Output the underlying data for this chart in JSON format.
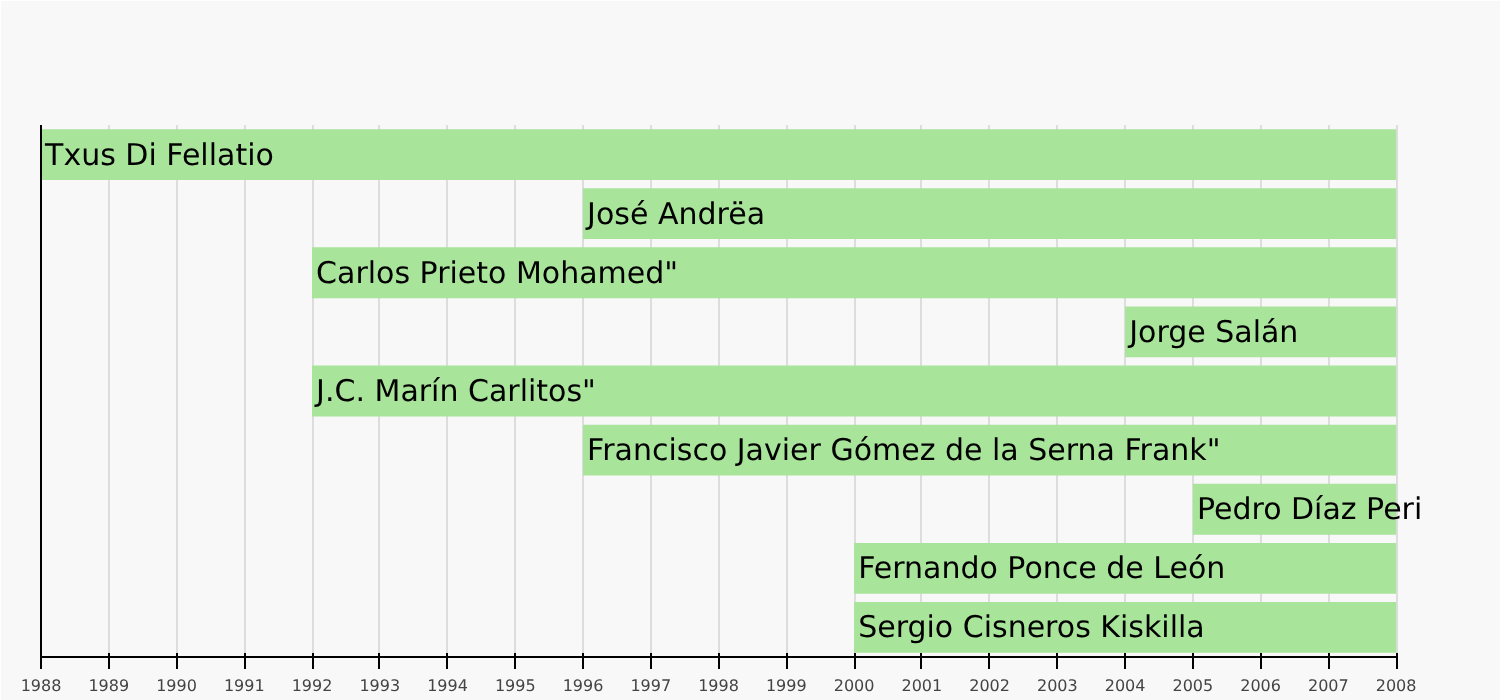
{
  "chart_data": {
    "type": "bar",
    "orientation": "horizontal",
    "categories": [
      "Txus Di Fellatio",
      "José Andrëa",
      "Carlos Prieto Mohamed\"",
      "Jorge Salán",
      "J.C. Marín Carlitos\"",
      "Francisco Javier Gómez de la Serna Frank\"",
      "Pedro Díaz Peri",
      "Fernando Ponce de León",
      "Sergio Cisneros Kiskilla"
    ],
    "base": [
      1988,
      1996,
      1992,
      2004,
      1992,
      1996,
      2005,
      2000,
      2000
    ],
    "values": [
      20,
      12,
      16,
      4,
      16,
      12,
      3,
      8,
      8
    ],
    "color": "#a8e49a",
    "xlim": [
      1988,
      2008
    ],
    "xticks": [
      1988,
      1989,
      1990,
      1991,
      1992,
      1993,
      1994,
      1995,
      1996,
      1997,
      1998,
      1999,
      2000,
      2001,
      2002,
      2003,
      2004,
      2005,
      2006,
      2007,
      2008
    ],
    "grid": "x"
  }
}
